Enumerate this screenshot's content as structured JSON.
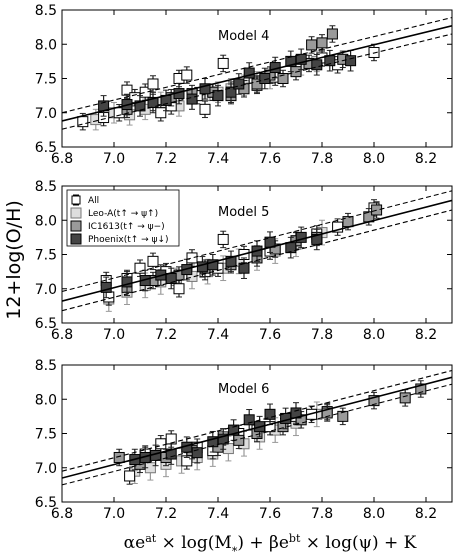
{
  "figure": {
    "ylabel": "12+log(O/H)",
    "xlabel_parts": [
      "αe",
      "at",
      " × log(M",
      "*",
      ") + βe",
      "bt",
      " × log(ψ) + K"
    ]
  },
  "colors": {
    "All": "#ffffff",
    "Leo-A": "#dedede",
    "IC1613": "#9a9a9a",
    "Phoenix": "#444444",
    "edge": "#000000",
    "fit": "#000000"
  },
  "legend": {
    "placement": "top-left",
    "panel": 1,
    "entries": [
      {
        "key": "All",
        "label": "All"
      },
      {
        "key": "Leo-A",
        "label": "Leo-A(t↑ → ψ↑)"
      },
      {
        "key": "IC1613",
        "label": "IC1613(t↑ → ψ−)"
      },
      {
        "key": "Phoenix",
        "label": "Phoenix(t↑ → ψ↓)"
      }
    ]
  },
  "chart_data": [
    {
      "type": "scatter",
      "title": "Model 4",
      "xlim": [
        6.8,
        8.3
      ],
      "ylim": [
        6.5,
        8.5
      ],
      "xticks": [
        "6.8",
        "7.0",
        "7.2",
        "7.4",
        "7.6",
        "7.8",
        "8.0",
        "8.2"
      ],
      "yticks": [
        "6.5",
        "7.0",
        "7.5",
        "8.0",
        "8.5"
      ],
      "fit": {
        "x": [
          6.8,
          8.3
        ],
        "y": [
          6.88,
          8.27
        ],
        "band": 0.12
      },
      "series": [
        {
          "key": "All",
          "err": 0.12,
          "points": [
            [
              6.88,
              6.87
            ],
            [
              6.96,
              6.93
            ],
            [
              7.02,
              7.0
            ],
            [
              7.05,
              7.33
            ],
            [
              7.08,
              7.22
            ],
            [
              7.12,
              7.3
            ],
            [
              7.15,
              7.42
            ],
            [
              7.18,
              7.0
            ],
            [
              7.22,
              7.1
            ],
            [
              7.25,
              7.5
            ],
            [
              7.28,
              7.55
            ],
            [
              7.32,
              7.25
            ],
            [
              7.35,
              7.05
            ],
            [
              7.38,
              7.3
            ],
            [
              7.42,
              7.72
            ],
            [
              7.45,
              7.3
            ],
            [
              7.55,
              7.4
            ],
            [
              7.62,
              7.52
            ],
            [
              7.7,
              7.65
            ],
            [
              7.8,
              7.8
            ],
            [
              7.86,
              7.7
            ],
            [
              8.0,
              7.88
            ]
          ]
        },
        {
          "key": "Leo-A",
          "err": 0.15,
          "points": [
            [
              6.93,
              6.9
            ],
            [
              7.0,
              7.0
            ],
            [
              7.06,
              6.97
            ],
            [
              7.12,
              7.05
            ],
            [
              7.18,
              7.15
            ],
            [
              7.25,
              7.1
            ],
            [
              7.3,
              7.2
            ],
            [
              7.35,
              7.25
            ],
            [
              7.4,
              7.3
            ],
            [
              7.45,
              7.35
            ],
            [
              7.5,
              7.4
            ],
            [
              7.55,
              7.45
            ],
            [
              7.6,
              7.5
            ],
            [
              7.72,
              7.7
            ],
            [
              7.78,
              7.75
            ]
          ]
        },
        {
          "key": "IC1613",
          "err": 0.12,
          "points": [
            [
              7.05,
              7.05
            ],
            [
              7.15,
              7.15
            ],
            [
              7.22,
              7.22
            ],
            [
              7.3,
              7.28
            ],
            [
              7.38,
              7.3
            ],
            [
              7.45,
              7.25
            ],
            [
              7.5,
              7.35
            ],
            [
              7.55,
              7.42
            ],
            [
              7.6,
              7.55
            ],
            [
              7.65,
              7.5
            ],
            [
              7.7,
              7.6
            ],
            [
              7.75,
              7.72
            ],
            [
              7.8,
              8.02
            ],
            [
              7.76,
              7.99
            ],
            [
              7.84,
              8.15
            ],
            [
              7.88,
              7.78
            ]
          ]
        },
        {
          "key": "Phoenix",
          "err": 0.15,
          "points": [
            [
              6.96,
              7.1
            ],
            [
              7.05,
              7.12
            ],
            [
              7.1,
              7.1
            ],
            [
              7.15,
              7.15
            ],
            [
              7.2,
              7.18
            ],
            [
              7.25,
              7.28
            ],
            [
              7.3,
              7.2
            ],
            [
              7.35,
              7.35
            ],
            [
              7.4,
              7.25
            ],
            [
              7.45,
              7.3
            ],
            [
              7.48,
              7.42
            ],
            [
              7.52,
              7.58
            ],
            [
              7.58,
              7.5
            ],
            [
              7.62,
              7.66
            ],
            [
              7.68,
              7.75
            ],
            [
              7.72,
              7.78
            ],
            [
              7.78,
              7.7
            ],
            [
              7.83,
              7.76
            ],
            [
              7.91,
              7.76
            ]
          ]
        }
      ]
    },
    {
      "type": "scatter",
      "title": "Model 5",
      "xlim": [
        6.8,
        8.3
      ],
      "ylim": [
        6.5,
        8.5
      ],
      "xticks": [
        "6.8",
        "7.0",
        "7.2",
        "7.4",
        "7.6",
        "7.8",
        "8.0",
        "8.2"
      ],
      "yticks": [
        "6.5",
        "7.0",
        "7.5",
        "8.0",
        "8.5"
      ],
      "fit": {
        "x": [
          6.8,
          8.3
        ],
        "y": [
          6.82,
          8.29
        ],
        "band": 0.14
      },
      "series": [
        {
          "key": "All",
          "err": 0.12,
          "points": [
            [
              6.97,
              7.12
            ],
            [
              6.98,
              6.88
            ],
            [
              7.05,
              7.15
            ],
            [
              7.1,
              7.3
            ],
            [
              7.15,
              7.4
            ],
            [
              7.2,
              7.25
            ],
            [
              7.25,
              7.0
            ],
            [
              7.3,
              7.45
            ],
            [
              7.35,
              7.25
            ],
            [
              7.4,
              7.3
            ],
            [
              7.42,
              7.72
            ],
            [
              7.5,
              7.5
            ],
            [
              7.6,
              7.55
            ],
            [
              7.7,
              7.7
            ],
            [
              7.78,
              7.8
            ],
            [
              7.86,
              7.9
            ],
            [
              8.0,
              8.18
            ]
          ]
        },
        {
          "key": "Leo-A",
          "err": 0.18,
          "points": [
            [
              6.98,
              6.85
            ],
            [
              7.05,
              6.95
            ],
            [
              7.12,
              7.05
            ],
            [
              7.18,
              7.1
            ],
            [
              7.24,
              7.12
            ],
            [
              7.3,
              7.18
            ],
            [
              7.36,
              7.25
            ],
            [
              7.42,
              7.3
            ],
            [
              7.48,
              7.4
            ],
            [
              7.55,
              7.45
            ],
            [
              7.62,
              7.55
            ],
            [
              7.7,
              7.65
            ],
            [
              7.8,
              7.82
            ]
          ]
        },
        {
          "key": "IC1613",
          "err": 0.12,
          "points": [
            [
              7.05,
              7.02
            ],
            [
              7.15,
              7.12
            ],
            [
              7.25,
              7.2
            ],
            [
              7.35,
              7.3
            ],
            [
              7.45,
              7.35
            ],
            [
              7.55,
              7.45
            ],
            [
              7.62,
              7.58
            ],
            [
              7.7,
              7.7
            ],
            [
              7.78,
              7.75
            ],
            [
              7.9,
              7.98
            ],
            [
              7.98,
              8.05
            ],
            [
              8.01,
              8.15
            ]
          ]
        },
        {
          "key": "Phoenix",
          "err": 0.15,
          "points": [
            [
              6.97,
              7.02
            ],
            [
              7.05,
              7.1
            ],
            [
              7.12,
              7.12
            ],
            [
              7.18,
              7.2
            ],
            [
              7.22,
              7.15
            ],
            [
              7.28,
              7.28
            ],
            [
              7.34,
              7.32
            ],
            [
              7.38,
              7.35
            ],
            [
              7.45,
              7.4
            ],
            [
              7.5,
              7.3
            ],
            [
              7.55,
              7.55
            ],
            [
              7.6,
              7.68
            ],
            [
              7.68,
              7.6
            ],
            [
              7.72,
              7.75
            ],
            [
              7.78,
              7.72
            ]
          ]
        }
      ]
    },
    {
      "type": "scatter",
      "title": "Model 6",
      "xlim": [
        6.8,
        8.3
      ],
      "ylim": [
        6.5,
        8.5
      ],
      "xticks": [
        "6.8",
        "7.0",
        "7.2",
        "7.4",
        "7.6",
        "7.8",
        "8.0",
        "8.2"
      ],
      "yticks": [
        "6.5",
        "7.0",
        "7.5",
        "8.0",
        "8.5"
      ],
      "fit": {
        "x": [
          6.8,
          8.3
        ],
        "y": [
          6.85,
          8.32
        ],
        "band": 0.1
      },
      "series": [
        {
          "key": "All",
          "err": 0.12,
          "points": [
            [
              7.06,
              6.88
            ],
            [
              7.12,
              7.2
            ],
            [
              7.18,
              7.35
            ],
            [
              7.22,
              7.42
            ],
            [
              7.28,
              7.1
            ],
            [
              7.32,
              7.3
            ],
            [
              7.38,
              7.25
            ],
            [
              7.42,
              7.45
            ],
            [
              7.48,
              7.5
            ],
            [
              7.55,
              7.55
            ],
            [
              7.6,
              7.6
            ],
            [
              7.7,
              7.75
            ],
            [
              7.76,
              7.78
            ],
            [
              7.82,
              7.82
            ]
          ]
        },
        {
          "key": "Leo-A",
          "err": 0.18,
          "points": [
            [
              7.08,
              6.95
            ],
            [
              7.14,
              7.0
            ],
            [
              7.2,
              7.05
            ],
            [
              7.26,
              7.1
            ],
            [
              7.32,
              7.15
            ],
            [
              7.38,
              7.2
            ],
            [
              7.44,
              7.28
            ],
            [
              7.5,
              7.35
            ],
            [
              7.56,
              7.45
            ],
            [
              7.62,
              7.55
            ],
            [
              7.7,
              7.65
            ],
            [
              7.78,
              7.78
            ]
          ]
        },
        {
          "key": "IC1613",
          "err": 0.12,
          "points": [
            [
              7.02,
              7.15
            ],
            [
              7.1,
              7.05
            ],
            [
              7.2,
              7.15
            ],
            [
              7.3,
              7.25
            ],
            [
              7.4,
              7.3
            ],
            [
              7.48,
              7.4
            ],
            [
              7.55,
              7.5
            ],
            [
              7.65,
              7.6
            ],
            [
              7.72,
              7.7
            ],
            [
              7.82,
              7.8
            ],
            [
              7.88,
              7.75
            ],
            [
              8.0,
              7.98
            ],
            [
              8.12,
              8.02
            ],
            [
              8.18,
              8.15
            ]
          ]
        },
        {
          "key": "Phoenix",
          "err": 0.15,
          "points": [
            [
              7.08,
              7.12
            ],
            [
              7.12,
              7.15
            ],
            [
              7.16,
              7.18
            ],
            [
              7.22,
              7.2
            ],
            [
              7.28,
              7.3
            ],
            [
              7.32,
              7.22
            ],
            [
              7.38,
              7.38
            ],
            [
              7.42,
              7.42
            ],
            [
              7.46,
              7.55
            ],
            [
              7.52,
              7.7
            ],
            [
              7.56,
              7.6
            ],
            [
              7.6,
              7.78
            ],
            [
              7.66,
              7.72
            ],
            [
              7.7,
              7.8
            ]
          ]
        }
      ]
    }
  ]
}
